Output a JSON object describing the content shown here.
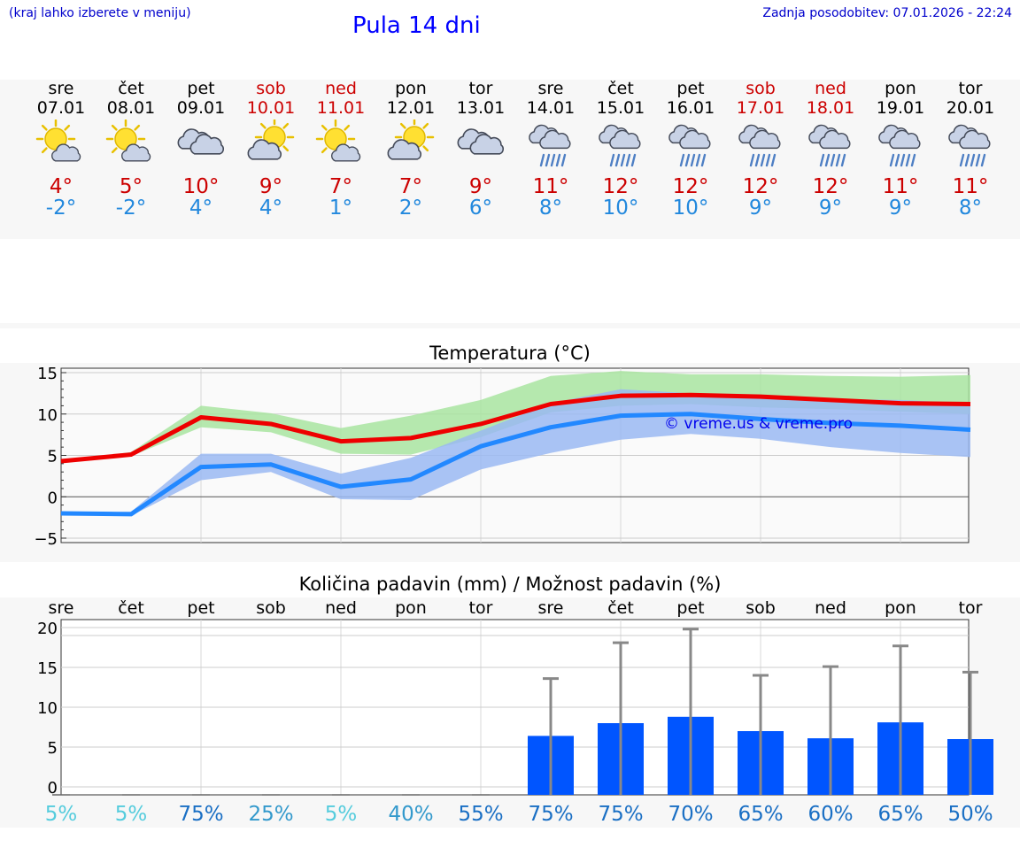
{
  "header": {
    "hint": "(kraj lahko izberete v meniju)",
    "title": "Pula 14 dni",
    "updated": "Zadnja posodobitev: 07.01.2026 - 22:24"
  },
  "days": [
    {
      "name": "sre",
      "date": "07.01",
      "weekend": false,
      "icon": "partly-sunny-icon",
      "tmax": "4°",
      "tmin": "-2°"
    },
    {
      "name": "čet",
      "date": "08.01",
      "weekend": false,
      "icon": "partly-sunny-icon",
      "tmax": "5°",
      "tmin": "-2°"
    },
    {
      "name": "pet",
      "date": "09.01",
      "weekend": false,
      "icon": "cloud-icon",
      "tmax": "10°",
      "tmin": "4°"
    },
    {
      "name": "sob",
      "date": "10.01",
      "weekend": true,
      "icon": "sun-behind-cloud-icon",
      "tmax": "9°",
      "tmin": "4°"
    },
    {
      "name": "ned",
      "date": "11.01",
      "weekend": true,
      "icon": "partly-sunny-icon",
      "tmax": "7°",
      "tmin": "1°"
    },
    {
      "name": "pon",
      "date": "12.01",
      "weekend": false,
      "icon": "sun-behind-cloud-icon",
      "tmax": "7°",
      "tmin": "2°"
    },
    {
      "name": "tor",
      "date": "13.01",
      "weekend": false,
      "icon": "cloud-icon",
      "tmax": "9°",
      "tmin": "6°"
    },
    {
      "name": "sre",
      "date": "14.01",
      "weekend": false,
      "icon": "rain-cloud-icon",
      "tmax": "11°",
      "tmin": "8°"
    },
    {
      "name": "čet",
      "date": "15.01",
      "weekend": false,
      "icon": "rain-cloud-icon",
      "tmax": "12°",
      "tmin": "10°"
    },
    {
      "name": "pet",
      "date": "16.01",
      "weekend": false,
      "icon": "rain-cloud-icon",
      "tmax": "12°",
      "tmin": "10°"
    },
    {
      "name": "sob",
      "date": "17.01",
      "weekend": true,
      "icon": "rain-cloud-icon",
      "tmax": "12°",
      "tmin": "9°"
    },
    {
      "name": "ned",
      "date": "18.01",
      "weekend": true,
      "icon": "rain-cloud-icon",
      "tmax": "12°",
      "tmin": "9°"
    },
    {
      "name": "pon",
      "date": "19.01",
      "weekend": false,
      "icon": "rain-cloud-icon",
      "tmax": "11°",
      "tmin": "9°"
    },
    {
      "name": "tor",
      "date": "20.01",
      "weekend": false,
      "icon": "rain-cloud-icon",
      "tmax": "11°",
      "tmin": "8°"
    }
  ],
  "colors": {
    "max": "#ee0000",
    "min": "#2288ff",
    "max_band": "#a8e4a0",
    "min_band": "#9ab8f2",
    "bar": "#0055ff",
    "whisker": "#888888"
  },
  "chart_data": [
    {
      "type": "line",
      "title": "Temperatura (°C)",
      "watermark": "© vreme.us & vreme.pro",
      "yticks": [
        "15",
        "10",
        "5",
        "0",
        "−5"
      ],
      "ylim": [
        -5,
        15
      ],
      "x": [
        0,
        1,
        2,
        3,
        4,
        5,
        6,
        7,
        8,
        9,
        10,
        11,
        12,
        13
      ],
      "series": [
        {
          "name": "max",
          "values": [
            4.3,
            5.1,
            9.6,
            8.8,
            6.7,
            7.1,
            8.8,
            11.2,
            12.2,
            12.3,
            12.1,
            11.7,
            11.3,
            11.2
          ]
        },
        {
          "name": "min",
          "values": [
            -2.0,
            -2.1,
            3.6,
            3.9,
            1.2,
            2.1,
            6.1,
            8.4,
            9.8,
            10.0,
            9.4,
            8.9,
            8.6,
            8.1
          ]
        }
      ],
      "bands": [
        {
          "name": "max_range",
          "low": [
            4.3,
            4.9,
            8.4,
            7.8,
            5.2,
            5.1,
            7.2,
            10.2,
            11.0,
            11.2,
            10.8,
            10.6,
            10.3,
            10.0
          ],
          "high": [
            4.3,
            5.4,
            11.0,
            10.1,
            8.3,
            9.8,
            11.7,
            14.6,
            15.2,
            14.8,
            14.8,
            14.6,
            14.5,
            14.7
          ]
        },
        {
          "name": "min_range",
          "low": [
            -2.0,
            -2.3,
            2.0,
            3.0,
            -0.3,
            -0.4,
            3.3,
            5.3,
            6.9,
            7.6,
            7.0,
            6.0,
            5.3,
            4.8
          ],
          "high": [
            -2.0,
            -1.8,
            5.2,
            5.2,
            2.8,
            4.7,
            8.0,
            11.3,
            13.0,
            12.5,
            12.1,
            11.8,
            11.7,
            11.3
          ]
        }
      ]
    },
    {
      "type": "bar",
      "title": "Količina padavin (mm) / Možnost padavin (%)",
      "categories": [
        "sre",
        "čet",
        "pet",
        "sob",
        "ned",
        "pon",
        "tor",
        "sre",
        "čet",
        "pet",
        "sob",
        "ned",
        "pon",
        "tor"
      ],
      "yticks": [
        "20",
        "15",
        "10",
        "5",
        "0"
      ],
      "ylim": [
        -1,
        21
      ],
      "values": [
        0,
        0,
        0,
        0,
        0,
        0,
        0,
        6.4,
        8.0,
        8.8,
        7.0,
        6.1,
        8.1,
        6.0
      ],
      "error_high": [
        0,
        0,
        0,
        0,
        0,
        0,
        0,
        13.6,
        18.1,
        19.8,
        14.0,
        15.1,
        17.7,
        14.4
      ],
      "chance": [
        "5%",
        "5%",
        "75%",
        "25%",
        "5%",
        "40%",
        "55%",
        "75%",
        "75%",
        "70%",
        "65%",
        "60%",
        "65%",
        "50%"
      ],
      "chance_colors": [
        "#55ccdd",
        "#55ccdd",
        "#1a6fc4",
        "#3399cc",
        "#55ccdd",
        "#3399cc",
        "#1a6fc4",
        "#1a6fc4",
        "#1a6fc4",
        "#1a6fc4",
        "#1a6fc4",
        "#1a6fc4",
        "#1a6fc4",
        "#1a6fc4"
      ]
    }
  ]
}
